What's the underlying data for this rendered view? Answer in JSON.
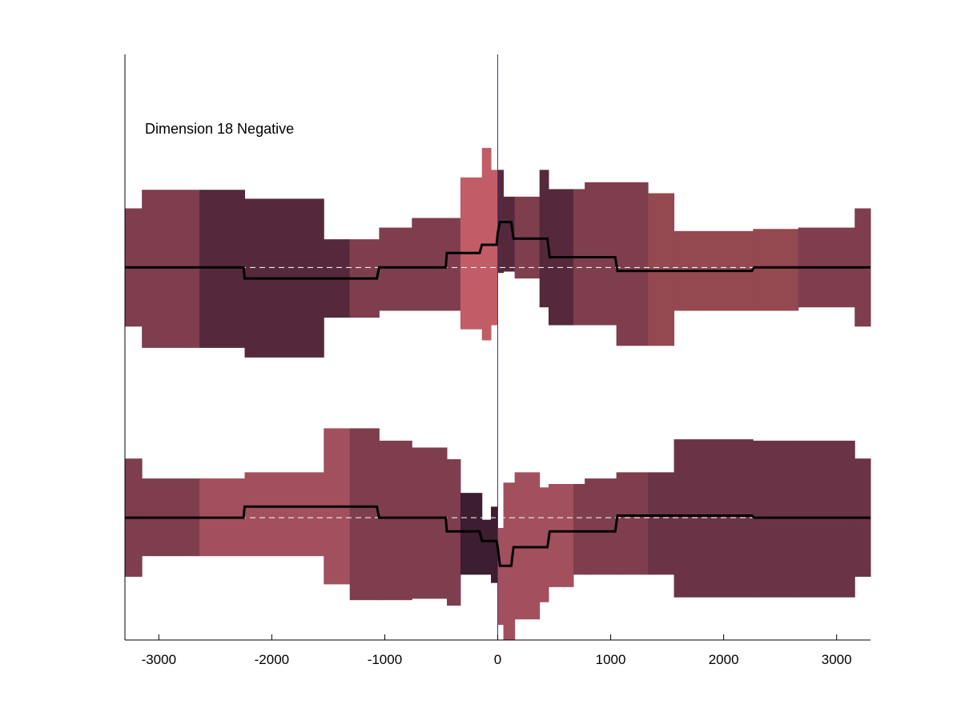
{
  "chart_data": {
    "type": "area",
    "annotation": "Dimension 18 Negative",
    "xlim": [
      -3300,
      3300
    ],
    "x_ticks": [
      -3000,
      -2000,
      -1000,
      0,
      1000,
      2000,
      3000
    ],
    "x_tick_labels": [
      "-3000",
      "-2000",
      "-1000",
      "0",
      "1000",
      "2000",
      "3000"
    ],
    "ylim": [
      -5.42,
      3.1
    ],
    "grid": false,
    "legend": "none",
    "zero_line_color": "#3b2fbf",
    "median_line_color": "#000000",
    "baseline_color": "#ffffff",
    "colors": {
      "c1": "#7e3e4e",
      "c2": "#55293b",
      "c3": "#a2505d",
      "c4": "#c15d66",
      "c5": "#3d1d30",
      "c6": "#6b3346",
      "c7": "#94484f"
    },
    "panels": [
      {
        "name": "top",
        "baseline": 0,
        "bands": [
          {
            "x0": -3300,
            "x1": -3150,
            "low": -0.86,
            "high": 0.86,
            "color": "c1"
          },
          {
            "x0": -3150,
            "x1": -2640,
            "low": -1.17,
            "high": 1.13,
            "color": "c1"
          },
          {
            "x0": -2640,
            "x1": -2240,
            "low": -1.17,
            "high": 1.13,
            "color": "c2"
          },
          {
            "x0": -2240,
            "x1": -1540,
            "low": -1.31,
            "high": 1.0,
            "color": "c2"
          },
          {
            "x0": -1540,
            "x1": -1310,
            "low": -0.73,
            "high": 0.41,
            "color": "c2"
          },
          {
            "x0": -1310,
            "x1": -1050,
            "low": -0.73,
            "high": 0.41,
            "color": "c1"
          },
          {
            "x0": -1050,
            "x1": -760,
            "low": -0.63,
            "high": 0.58,
            "color": "c1"
          },
          {
            "x0": -760,
            "x1": -450,
            "low": -0.63,
            "high": 0.72,
            "color": "c1"
          },
          {
            "x0": -450,
            "x1": -330,
            "low": -0.63,
            "high": 0.72,
            "color": "c1"
          },
          {
            "x0": -330,
            "x1": -140,
            "low": -0.9,
            "high": 1.31,
            "color": "c4"
          },
          {
            "x0": -140,
            "x1": -60,
            "low": -1.06,
            "high": 1.74,
            "color": "c4"
          },
          {
            "x0": -60,
            "x1": 0,
            "low": -0.84,
            "high": 1.42,
            "color": "c4"
          },
          {
            "x0": 0,
            "x1": 50,
            "low": -0.08,
            "high": 1.42,
            "color": "c2"
          },
          {
            "x0": 50,
            "x1": 150,
            "low": -0.06,
            "high": 1.03,
            "color": "c2"
          },
          {
            "x0": 150,
            "x1": 370,
            "low": -0.16,
            "high": 1.03,
            "color": "c1"
          },
          {
            "x0": 370,
            "x1": 450,
            "low": -0.58,
            "high": 1.42,
            "color": "c2"
          },
          {
            "x0": 450,
            "x1": 670,
            "low": -0.84,
            "high": 1.14,
            "color": "c2"
          },
          {
            "x0": 670,
            "x1": 770,
            "low": -0.84,
            "high": 1.14,
            "color": "c1"
          },
          {
            "x0": 770,
            "x1": 1050,
            "low": -0.84,
            "high": 1.24,
            "color": "c1"
          },
          {
            "x0": 1050,
            "x1": 1330,
            "low": -1.14,
            "high": 1.24,
            "color": "c1"
          },
          {
            "x0": 1330,
            "x1": 1560,
            "low": -1.14,
            "high": 1.08,
            "color": "c7"
          },
          {
            "x0": 1560,
            "x1": 2260,
            "low": -0.63,
            "high": 0.53,
            "color": "c7"
          },
          {
            "x0": 2260,
            "x1": 2660,
            "low": -0.63,
            "high": 0.56,
            "color": "c7"
          },
          {
            "x0": 2660,
            "x1": 3160,
            "low": -0.58,
            "high": 0.58,
            "color": "c1"
          },
          {
            "x0": 3160,
            "x1": 3300,
            "low": -0.86,
            "high": 0.86,
            "color": "c1"
          }
        ],
        "median": {
          "x": [
            -3300,
            -2250,
            -2240,
            -1070,
            -1050,
            -460,
            -450,
            -160,
            -140,
            -10,
            0,
            20,
            120,
            140,
            440,
            460,
            1040,
            1060,
            2250,
            2270,
            3300
          ],
          "y": [
            0,
            0,
            -0.16,
            -0.16,
            0,
            0,
            0.21,
            0.21,
            0.33,
            0.33,
            0.5,
            0.66,
            0.66,
            0.42,
            0.42,
            0.15,
            0.15,
            -0.05,
            -0.05,
            0,
            0
          ]
        }
      },
      {
        "name": "bottom",
        "baseline": -3.64,
        "bands": [
          {
            "x0": -3300,
            "x1": -3150,
            "low": -4.5,
            "high": -2.78,
            "color": "c1"
          },
          {
            "x0": -3150,
            "x1": -2640,
            "low": -4.2,
            "high": -3.07,
            "color": "c1"
          },
          {
            "x0": -2640,
            "x1": -2240,
            "low": -4.2,
            "high": -3.07,
            "color": "c3"
          },
          {
            "x0": -2240,
            "x1": -1540,
            "low": -4.2,
            "high": -2.98,
            "color": "c3"
          },
          {
            "x0": -1540,
            "x1": -1310,
            "low": -4.61,
            "high": -2.34,
            "color": "c3"
          },
          {
            "x0": -1310,
            "x1": -1050,
            "low": -4.84,
            "high": -2.34,
            "color": "c1"
          },
          {
            "x0": -1050,
            "x1": -760,
            "low": -4.84,
            "high": -2.52,
            "color": "c1"
          },
          {
            "x0": -760,
            "x1": -450,
            "low": -4.82,
            "high": -2.62,
            "color": "c1"
          },
          {
            "x0": -450,
            "x1": -330,
            "low": -4.92,
            "high": -2.79,
            "color": "c1"
          },
          {
            "x0": -330,
            "x1": -140,
            "low": -4.47,
            "high": -3.28,
            "color": "c5"
          },
          {
            "x0": -140,
            "x1": -60,
            "low": -4.47,
            "high": -3.67,
            "color": "c5"
          },
          {
            "x0": -60,
            "x1": 0,
            "low": -4.59,
            "high": -3.48,
            "color": "c5"
          },
          {
            "x0": 0,
            "x1": 50,
            "low": -5.2,
            "high": -3.79,
            "color": "c3"
          },
          {
            "x0": 50,
            "x1": 150,
            "low": -5.42,
            "high": -3.13,
            "color": "c3"
          },
          {
            "x0": 150,
            "x1": 370,
            "low": -5.12,
            "high": -2.98,
            "color": "c3"
          },
          {
            "x0": 370,
            "x1": 450,
            "low": -4.87,
            "high": -3.2,
            "color": "c3"
          },
          {
            "x0": 450,
            "x1": 670,
            "low": -4.65,
            "high": -3.15,
            "color": "c3"
          },
          {
            "x0": 670,
            "x1": 770,
            "low": -4.47,
            "high": -3.15,
            "color": "c1"
          },
          {
            "x0": 770,
            "x1": 1050,
            "low": -4.47,
            "high": -3.07,
            "color": "c1"
          },
          {
            "x0": 1050,
            "x1": 1330,
            "low": -4.47,
            "high": -2.98,
            "color": "c1"
          },
          {
            "x0": 1330,
            "x1": 1560,
            "low": -4.47,
            "high": -2.98,
            "color": "c6"
          },
          {
            "x0": 1560,
            "x1": 2260,
            "low": -4.8,
            "high": -2.5,
            "color": "c6"
          },
          {
            "x0": 2260,
            "x1": 2660,
            "low": -4.8,
            "high": -2.52,
            "color": "c6"
          },
          {
            "x0": 2660,
            "x1": 3160,
            "low": -4.8,
            "high": -2.52,
            "color": "c6"
          },
          {
            "x0": 3160,
            "x1": 3300,
            "low": -4.5,
            "high": -2.78,
            "color": "c6"
          }
        ],
        "median": {
          "x": [
            -3300,
            -2250,
            -2240,
            -1070,
            -1050,
            -460,
            -450,
            -160,
            -140,
            -10,
            0,
            20,
            120,
            140,
            440,
            460,
            1040,
            1060,
            2250,
            2270,
            3300
          ],
          "y": [
            -3.64,
            -3.64,
            -3.48,
            -3.48,
            -3.64,
            -3.64,
            -3.84,
            -3.84,
            -3.98,
            -3.98,
            -4.07,
            -4.34,
            -4.34,
            -4.07,
            -4.07,
            -3.84,
            -3.84,
            -3.61,
            -3.61,
            -3.64,
            -3.64
          ]
        }
      }
    ]
  }
}
